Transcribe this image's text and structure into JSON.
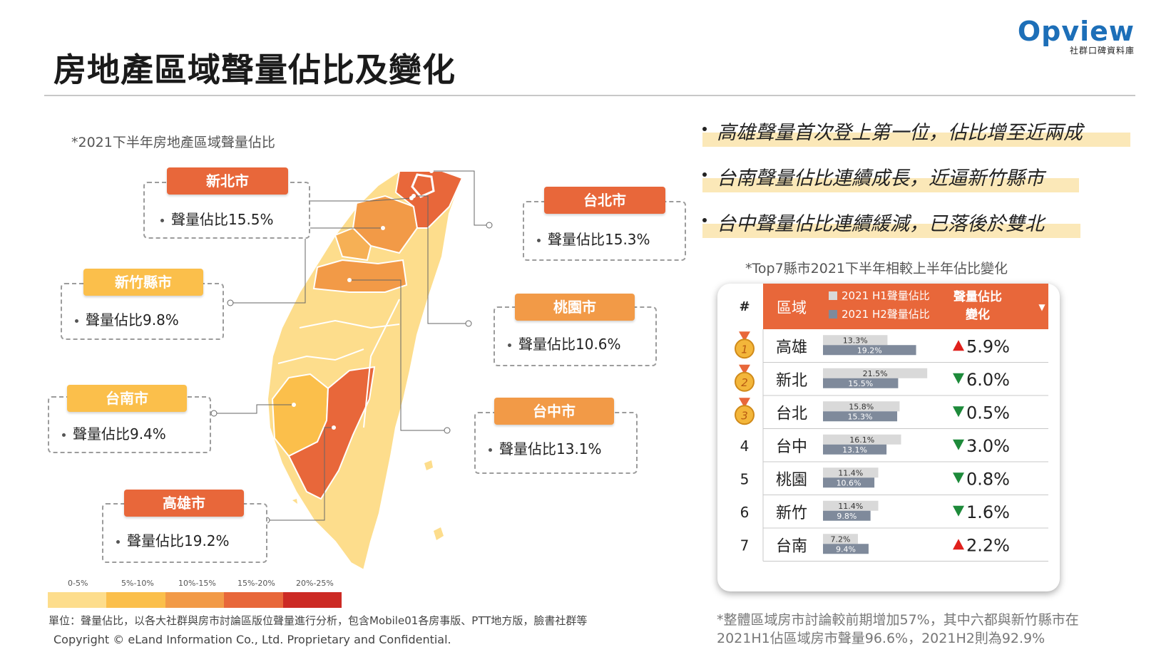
{
  "title": "房地產區域聲量佔比及變化",
  "logo": {
    "name": "Opview",
    "sub": "社群口碑資料庫"
  },
  "map": {
    "caption": "*2021下半年房地產區域聲量佔比",
    "prefix": "聲量佔比",
    "labels": [
      {
        "name": "新北市",
        "value": "15.5%"
      },
      {
        "name": "台北市",
        "value": "15.3%"
      },
      {
        "name": "新竹縣市",
        "value": "9.8%"
      },
      {
        "name": "桃園市",
        "value": "10.6%"
      },
      {
        "name": "台南市",
        "value": "9.4%"
      },
      {
        "name": "台中市",
        "value": "13.1%"
      },
      {
        "name": "高雄市",
        "value": "19.2%"
      }
    ],
    "legend": [
      {
        "label": "0-5%",
        "color": "#fddd8c"
      },
      {
        "label": "5%-10%",
        "color": "#fbbf4b"
      },
      {
        "label": "10%-15%",
        "color": "#f29a47"
      },
      {
        "label": "15%-20%",
        "color": "#e8673a"
      },
      {
        "label": "20%-25%",
        "color": "#cc2a24"
      }
    ]
  },
  "bullets": [
    "高雄聲量首次登上第一位，佔比增至近兩成",
    "台南聲量佔比連續成長，近逼新竹縣市",
    "台中聲量佔比連續緩減，已落後於雙北"
  ],
  "table_caption": "*Top7縣市2021下半年相較上半年佔比變化",
  "chart_data": {
    "type": "bar",
    "header": {
      "rank": "#",
      "region": "區域",
      "h1": "2021 H1聲量佔比",
      "h2": "2021 H2聲量佔比",
      "change": "聲量佔比\n變化"
    },
    "categories": [
      "高雄",
      "新北",
      "台北",
      "台中",
      "桃園",
      "新竹",
      "台南"
    ],
    "series": [
      {
        "name": "2021 H1聲量佔比",
        "values": [
          13.3,
          21.5,
          15.8,
          16.1,
          11.4,
          11.4,
          7.2
        ],
        "color": "#d9d9d9"
      },
      {
        "name": "2021 H2聲量佔比",
        "values": [
          19.2,
          15.5,
          15.3,
          13.1,
          10.6,
          9.8,
          9.4
        ],
        "color": "#7f8a9b"
      }
    ],
    "changes": [
      {
        "dir": "up",
        "text": "5.9%"
      },
      {
        "dir": "down",
        "text": "6.0%"
      },
      {
        "dir": "down",
        "text": "0.5%"
      },
      {
        "dir": "down",
        "text": "3.0%"
      },
      {
        "dir": "down",
        "text": "0.8%"
      },
      {
        "dir": "down",
        "text": "1.6%"
      },
      {
        "dir": "up",
        "text": "2.2%"
      }
    ],
    "ranks": [
      "1",
      "2",
      "3",
      "4",
      "5",
      "6",
      "7"
    ],
    "colors": {
      "header": "#e8673a",
      "up": "#e0201c",
      "down": "#1d8a3a"
    }
  },
  "footnote": [
    "*整體區域房市討論較前期增加57%，其中六都與新竹縣市在",
    "2021H1佔區域房市聲量96.6%，2021H2則為92.9%"
  ],
  "units": "單位：聲量佔比，以各大社群與房市討論區版位聲量進行分析，包含Mobile01各房事版、PTT地方版，臉書社群等",
  "copyright": "Copyright © eLand Information Co., Ltd. Proprietary and Confidential."
}
